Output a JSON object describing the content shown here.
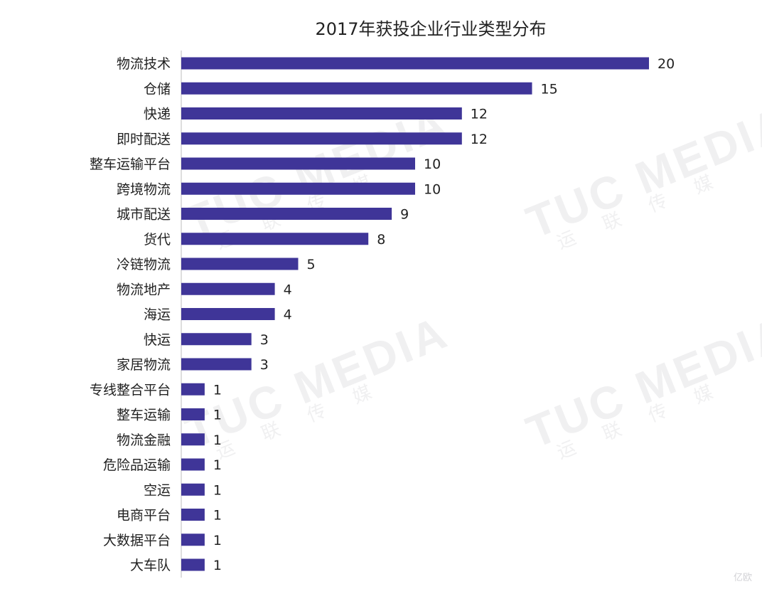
{
  "chart_data": {
    "type": "bar",
    "orientation": "horizontal",
    "title": "2017年获投企业行业类型分布",
    "categories": [
      "物流技术",
      "仓储",
      "快递",
      "即时配送",
      "整车运输平台",
      "跨境物流",
      "城市配送",
      "货代",
      "冷链物流",
      "物流地产",
      "海运",
      "快运",
      "家居物流",
      "专线整合平台",
      "整车运输",
      "物流金融",
      "危险品运输",
      "空运",
      "电商平台",
      "大数据平台",
      "大车队"
    ],
    "values": [
      20,
      15,
      12,
      12,
      10,
      10,
      9,
      8,
      5,
      4,
      4,
      3,
      3,
      1,
      1,
      1,
      1,
      1,
      1,
      1,
      1
    ],
    "xlim": [
      0,
      20
    ],
    "bar_color": "#3f3598",
    "grid": false,
    "legend": "none"
  },
  "watermark": {
    "brand": "TUC MEDIA",
    "sub": "运 联 传 媒",
    "corner": "亿欧"
  }
}
